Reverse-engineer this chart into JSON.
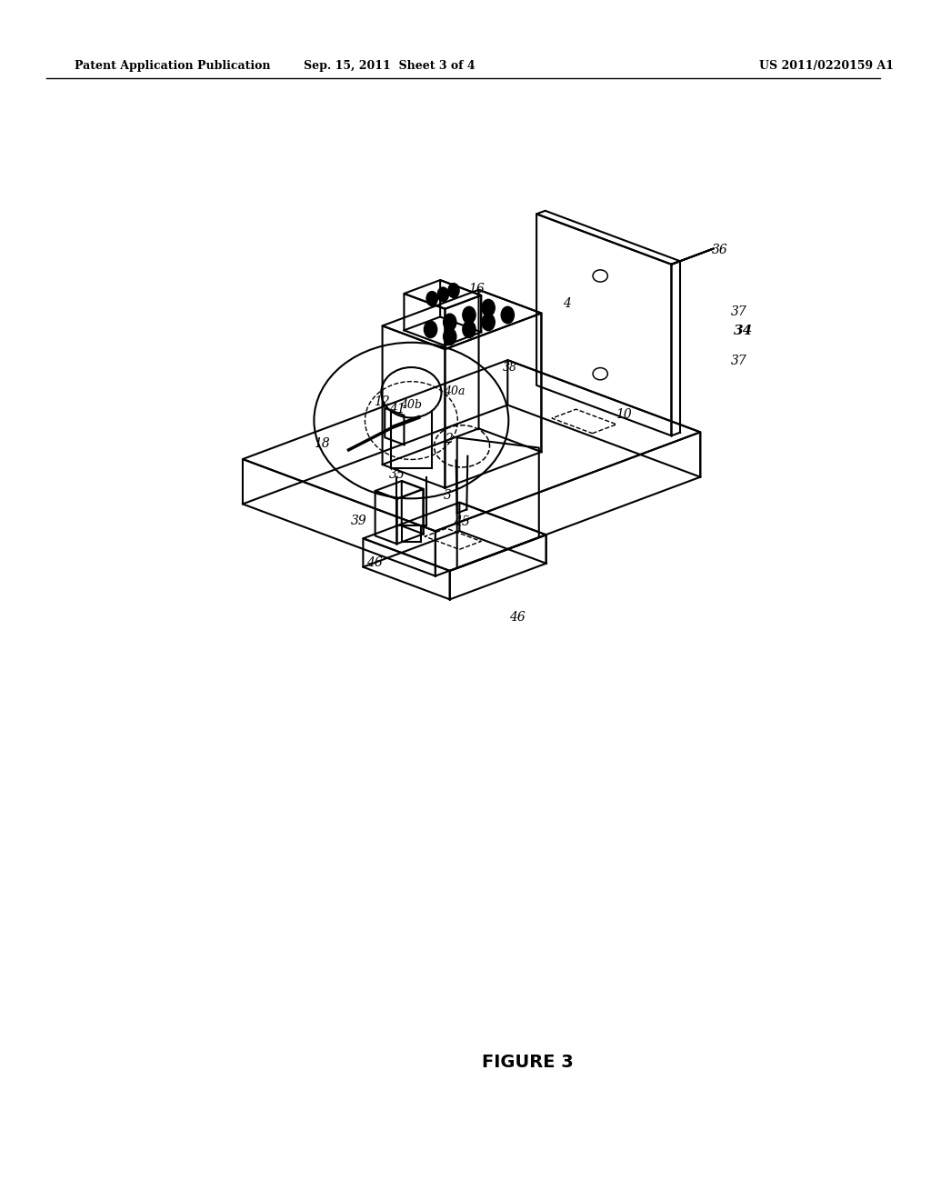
{
  "header_left": "Patent Application Publication",
  "header_mid": "Sep. 15, 2011  Sheet 3 of 4",
  "header_right": "US 2011/0220159 A1",
  "figure_label": "FIGURE 3",
  "bg_color": "#ffffff",
  "line_color": "#000000"
}
